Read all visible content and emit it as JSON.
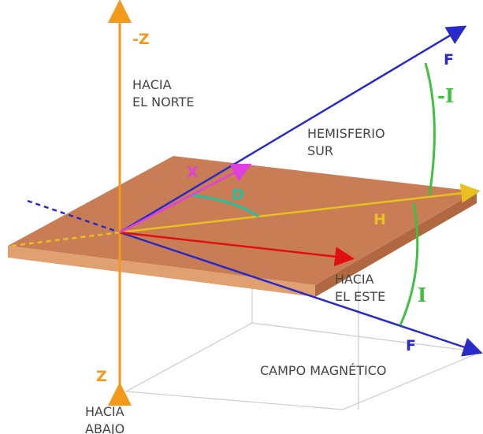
{
  "labels": {
    "minus_z": "-Z",
    "north": [
      "HACIA",
      "EL NORTE"
    ],
    "f_top": "F",
    "minus_i": "-I",
    "hemisphere": [
      "HEMISFERIO",
      "SUR"
    ],
    "x": "X",
    "d": "D",
    "h": "H",
    "east": [
      "HACIA",
      "EL ESTE"
    ],
    "i": "I",
    "f_bottom": "F",
    "z": "Z",
    "field": "CAMPO MAGNÉTICO",
    "down": [
      "HACIA",
      "ABAJO"
    ]
  }
}
